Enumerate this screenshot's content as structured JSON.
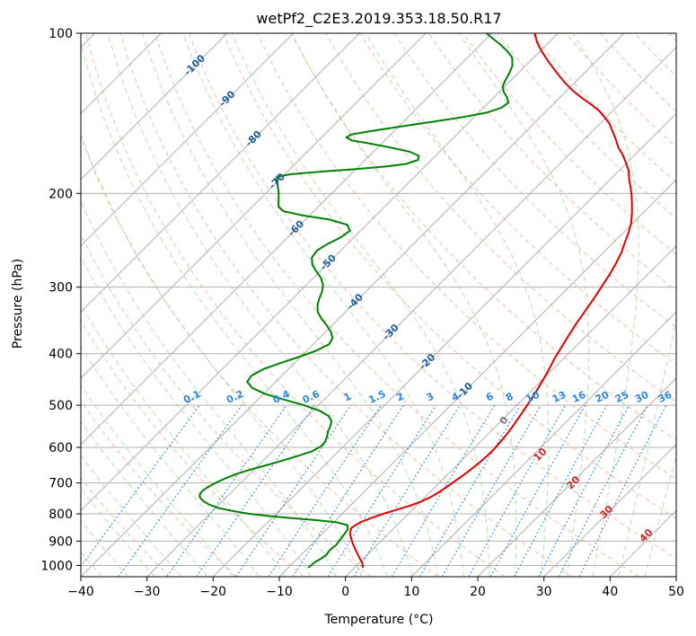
{
  "chart_data": {
    "type": "line",
    "subtype": "skew-t log-p",
    "title": "wetPf2_C2E3.2019.353.18.50.R17",
    "xlabel": "Temperature (°C)",
    "ylabel": "Pressure (hPa)",
    "xlim": [
      -40,
      50
    ],
    "ylim": [
      1050,
      100
    ],
    "y_scale": "log",
    "grid": true,
    "x_ticks": [
      -40,
      -30,
      -20,
      -10,
      0,
      10,
      20,
      30,
      40,
      50
    ],
    "y_ticks": [
      100,
      200,
      300,
      400,
      500,
      600,
      700,
      800,
      900,
      1000
    ],
    "skew_lines": {
      "color": "#b0b0b0"
    },
    "dry_adiabats": {
      "color": "#f4a582",
      "labels": [
        {
          "text": "-100",
          "T": -100,
          "p": 115
        },
        {
          "text": "-90",
          "T": -90,
          "p": 133
        },
        {
          "text": "-80",
          "T": -80,
          "p": 158
        },
        {
          "text": "-70",
          "T": -70,
          "p": 190
        },
        {
          "text": "-60",
          "T": -60,
          "p": 233
        },
        {
          "text": "-50",
          "T": -50,
          "p": 270
        },
        {
          "text": "-40",
          "T": -40,
          "p": 320
        },
        {
          "text": "-30",
          "T": -30,
          "p": 365
        },
        {
          "text": "-20",
          "T": -20,
          "p": 415
        },
        {
          "text": "-10",
          "T": -10,
          "p": 470
        }
      ]
    },
    "moist_adiabats": {
      "color": "#a6d8a0",
      "labels": [
        {
          "text": "0",
          "T": 24,
          "p": 535
        },
        {
          "text": "10",
          "T": 29.5,
          "p": 620
        },
        {
          "text": "20",
          "T": 34.5,
          "p": 700
        },
        {
          "text": "30",
          "T": 39.5,
          "p": 795
        },
        {
          "text": "40",
          "T": 45.5,
          "p": 880
        }
      ]
    },
    "mixing_ratio_labels": [
      "0.1",
      "0.2",
      "0.4",
      "0.6",
      "1",
      "1.5",
      "2",
      "3",
      "4",
      "6",
      "8",
      "10",
      "13",
      "16",
      "20",
      "25",
      "30",
      "36"
    ],
    "mixing_ratio_label_T": [
      -23,
      -16.5,
      -9.5,
      -5,
      0.5,
      5,
      8.5,
      13,
      16.8,
      22,
      25,
      28.5,
      32.5,
      35.5,
      39,
      42,
      45,
      48.5
    ],
    "mixing_ratio_color": "#3a8fd8",
    "series": [
      {
        "color": "#e00000",
        "points": [
          [
            1.3,
            1010
          ],
          [
            0.5,
            990
          ],
          [
            -0.6,
            970
          ],
          [
            -1.7,
            950
          ],
          [
            -2.8,
            930
          ],
          [
            -3.9,
            910
          ],
          [
            -4.9,
            890
          ],
          [
            -5.9,
            870
          ],
          [
            -6.5,
            850
          ],
          [
            -6.0,
            830
          ],
          [
            -5.0,
            815
          ],
          [
            -3.8,
            800
          ],
          [
            -2.3,
            785
          ],
          [
            -1.0,
            772
          ],
          [
            0.0,
            760
          ],
          [
            0.8,
            745
          ],
          [
            1.3,
            730
          ],
          [
            1.8,
            710
          ],
          [
            2.2,
            690
          ],
          [
            2.6,
            670
          ],
          [
            2.9,
            650
          ],
          [
            3.1,
            630
          ],
          [
            3.2,
            610
          ],
          [
            3.1,
            590
          ],
          [
            2.9,
            570
          ],
          [
            2.6,
            550
          ],
          [
            2.2,
            530
          ],
          [
            1.8,
            510
          ],
          [
            1.3,
            490
          ],
          [
            0.8,
            470
          ],
          [
            0.2,
            450
          ],
          [
            -0.5,
            430
          ],
          [
            -1.3,
            410
          ],
          [
            -2.0,
            390
          ],
          [
            -2.7,
            370
          ],
          [
            -3.4,
            350
          ],
          [
            -4.0,
            330
          ],
          [
            -4.6,
            312
          ],
          [
            -5.2,
            297
          ],
          [
            -5.8,
            283
          ],
          [
            -6.5,
            270
          ],
          [
            -7.3,
            258
          ],
          [
            -8.3,
            247
          ],
          [
            -9.2,
            237
          ],
          [
            -10.3,
            227
          ],
          [
            -11.6,
            218
          ],
          [
            -12.9,
            210
          ],
          [
            -14.3,
            202
          ],
          [
            -15.7,
            195
          ],
          [
            -17.2,
            188
          ],
          [
            -18.6,
            181
          ],
          [
            -20.2,
            175
          ],
          [
            -21.9,
            169
          ],
          [
            -23.6,
            164
          ],
          [
            -25.3,
            158
          ],
          [
            -26.9,
            153
          ],
          [
            -28.5,
            148
          ],
          [
            -30.2,
            144
          ],
          [
            -32.0,
            140
          ],
          [
            -34.3,
            136
          ],
          [
            -36.8,
            132
          ],
          [
            -39.2,
            128
          ],
          [
            -41.4,
            124
          ],
          [
            -43.5,
            120
          ],
          [
            -45.6,
            116
          ],
          [
            -47.7,
            112
          ],
          [
            -49.8,
            108
          ],
          [
            -51.8,
            104
          ],
          [
            -53.5,
            100
          ]
        ]
      },
      {
        "color": "#008000",
        "points": [
          [
            -7.0,
            1010
          ],
          [
            -6.8,
            985
          ],
          [
            -6.4,
            970
          ],
          [
            -6.2,
            955
          ],
          [
            -6.4,
            935
          ],
          [
            -6.2,
            915
          ],
          [
            -6.4,
            895
          ],
          [
            -6.6,
            875
          ],
          [
            -6.8,
            855
          ],
          [
            -7.5,
            840
          ],
          [
            -9.5,
            830
          ],
          [
            -13.0,
            822
          ],
          [
            -17.0,
            815
          ],
          [
            -20.5,
            808
          ],
          [
            -24.0,
            800
          ],
          [
            -27.0,
            790
          ],
          [
            -29.6,
            780
          ],
          [
            -31.6,
            768
          ],
          [
            -33.0,
            756
          ],
          [
            -34.0,
            745
          ],
          [
            -34.5,
            734
          ],
          [
            -34.6,
            724
          ],
          [
            -34.4,
            714
          ],
          [
            -34.0,
            704
          ],
          [
            -33.5,
            694
          ],
          [
            -32.8,
            683
          ],
          [
            -31.8,
            671
          ],
          [
            -30.3,
            659
          ],
          [
            -28.6,
            647
          ],
          [
            -27.0,
            635
          ],
          [
            -25.4,
            622
          ],
          [
            -24.0,
            610
          ],
          [
            -23.4,
            597
          ],
          [
            -23.5,
            585
          ],
          [
            -24.0,
            572
          ],
          [
            -24.6,
            560
          ],
          [
            -25.0,
            548
          ],
          [
            -25.6,
            536
          ],
          [
            -26.8,
            524
          ],
          [
            -29.0,
            512
          ],
          [
            -32.2,
            500
          ],
          [
            -36.0,
            488
          ],
          [
            -39.8,
            476
          ],
          [
            -42.6,
            464
          ],
          [
            -44.3,
            452
          ],
          [
            -44.6,
            440
          ],
          [
            -43.8,
            428
          ],
          [
            -42.2,
            417
          ],
          [
            -40.3,
            406
          ],
          [
            -38.6,
            395
          ],
          [
            -37.6,
            384
          ],
          [
            -38.0,
            374
          ],
          [
            -39.2,
            364
          ],
          [
            -40.8,
            354
          ],
          [
            -42.6,
            344
          ],
          [
            -44.2,
            334
          ],
          [
            -45.3,
            324
          ],
          [
            -46.0,
            315
          ],
          [
            -46.6,
            306
          ],
          [
            -47.5,
            297
          ],
          [
            -48.9,
            288
          ],
          [
            -50.6,
            280
          ],
          [
            -52.2,
            272
          ],
          [
            -53.3,
            264
          ],
          [
            -53.6,
            256
          ],
          [
            -53.0,
            249
          ],
          [
            -52.0,
            242
          ],
          [
            -51.6,
            235
          ],
          [
            -52.9,
            229
          ],
          [
            -56.3,
            224
          ],
          [
            -61.0,
            220
          ],
          [
            -64.6,
            216
          ],
          [
            -66.0,
            212
          ],
          [
            -67.0,
            206
          ],
          [
            -68.0,
            200
          ],
          [
            -69.0,
            195
          ],
          [
            -70.0,
            190
          ],
          [
            -70.8,
            186
          ],
          [
            -69.0,
            184
          ],
          [
            -65.0,
            182
          ],
          [
            -60.0,
            180
          ],
          [
            -56.0,
            178
          ],
          [
            -53.2,
            176
          ],
          [
            -52.0,
            173
          ],
          [
            -52.5,
            170
          ],
          [
            -54.5,
            167
          ],
          [
            -58.0,
            164
          ],
          [
            -62.0,
            161
          ],
          [
            -65.0,
            159
          ],
          [
            -66.2,
            157
          ],
          [
            -66.0,
            155
          ],
          [
            -63.8,
            153
          ],
          [
            -60.0,
            150
          ],
          [
            -56.0,
            147
          ],
          [
            -52.0,
            144
          ],
          [
            -48.8,
            141
          ],
          [
            -47.3,
            138
          ],
          [
            -47.0,
            135
          ],
          [
            -48.0,
            132
          ],
          [
            -49.3,
            129
          ],
          [
            -50.3,
            126
          ],
          [
            -50.8,
            123
          ],
          [
            -51.3,
            119
          ],
          [
            -52.0,
            115
          ],
          [
            -53.3,
            111
          ],
          [
            -55.0,
            108
          ],
          [
            -57.0,
            105
          ],
          [
            -59.3,
            102
          ],
          [
            -60.8,
            100
          ]
        ]
      }
    ]
  }
}
